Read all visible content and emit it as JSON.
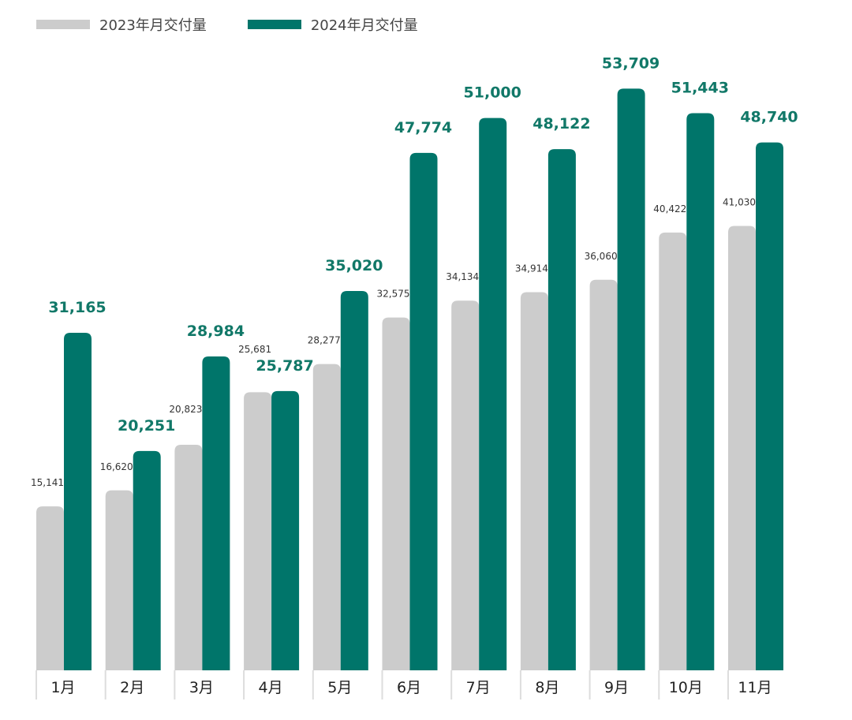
{
  "chart_data": {
    "type": "bar",
    "title": "",
    "xlabel": "",
    "ylabel": "",
    "categories": [
      "1月",
      "2月",
      "3月",
      "4月",
      "5月",
      "6月",
      "7月",
      "8月",
      "9月",
      "10月",
      "11月"
    ],
    "series": [
      {
        "name": "2023年月交付量",
        "color": "#cccccc",
        "values": [
          15141,
          16620,
          20823,
          25681,
          28277,
          32575,
          34134,
          34914,
          36060,
          40422,
          41030
        ],
        "labels": [
          "15,141",
          "16,620",
          "20,823",
          "25,681",
          "28,277",
          "32,575",
          "34,134",
          "34,914",
          "36,060",
          "40,422",
          "41,030"
        ]
      },
      {
        "name": "2024年月交付量",
        "color": "#00756a",
        "values": [
          31165,
          20251,
          28984,
          25787,
          35020,
          47774,
          51000,
          48122,
          53709,
          51443,
          48740
        ],
        "labels": [
          "31,165",
          "20,251",
          "28,984",
          "25,787",
          "35,020",
          "47,774",
          "51,000",
          "48,122",
          "53,709",
          "51,443",
          "48,740"
        ]
      }
    ],
    "ylim": [
      0,
      60000
    ],
    "grid": false,
    "legend_position": "top-left"
  }
}
